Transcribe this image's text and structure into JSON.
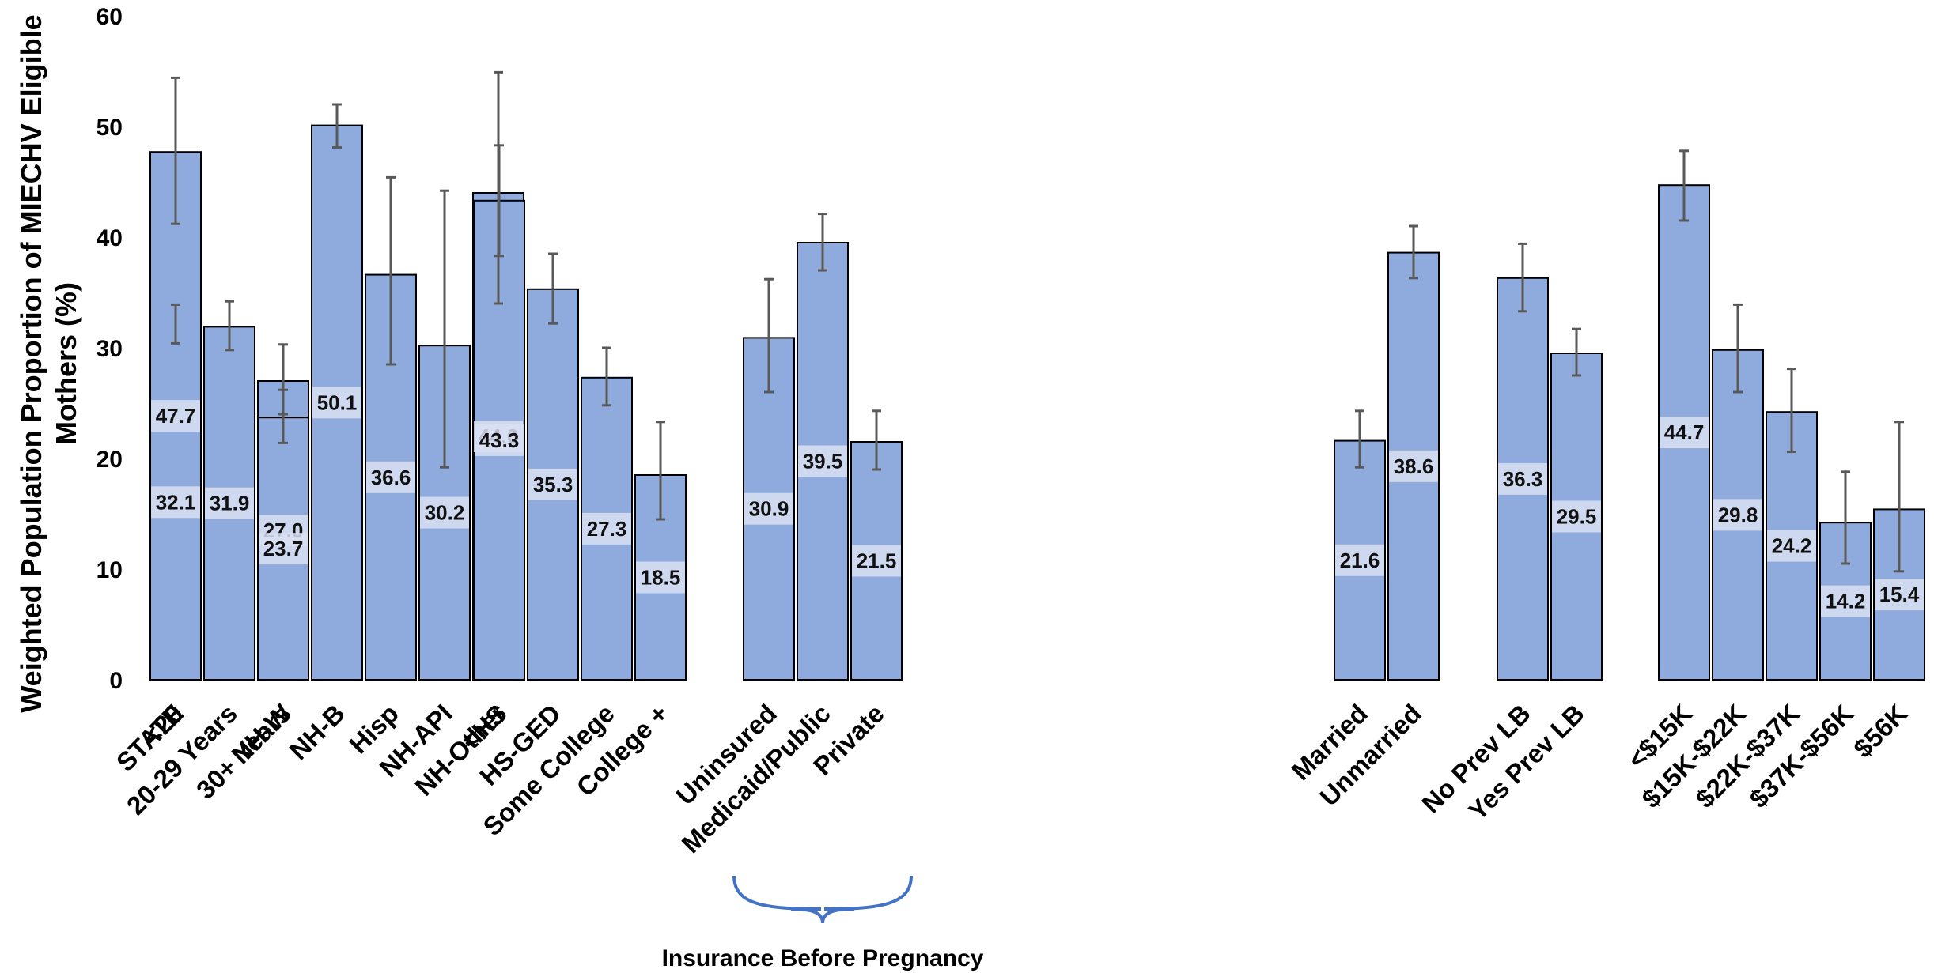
{
  "chart_data": {
    "type": "bar",
    "ylabel_lines": [
      "Weighted Population Proportion of MIECHV Eligible",
      "Mothers (%)"
    ],
    "ylim": [
      0,
      60
    ],
    "yticks": [
      0,
      10,
      20,
      30,
      40,
      50,
      60
    ],
    "grid": false,
    "colors": {
      "state": "#4472C4",
      "group": "#8FAADC",
      "bar_border": "#000000",
      "error_bar": "#595959",
      "brace": "#4472C4",
      "label_box": "#D9E1F2"
    },
    "categories": [
      "STATE",
      "<20",
      "20-29 Years",
      "30+ Years",
      "NH-W",
      "NH-B",
      "Hisp",
      "NH-API",
      "NH-Other",
      "<HS",
      "HS-GED",
      "Some College",
      "College +",
      "Uninsured",
      "Medicaid/Public",
      "Private",
      "Married",
      "Unmarried",
      "No Prev LB",
      "Yes Prev LB",
      "<$15K",
      "$15K-$22K",
      "$22K-$37K",
      "$37K-$56K",
      "$56K"
    ],
    "values": [
      32.1,
      47.7,
      31.9,
      27.0,
      23.7,
      50.1,
      36.6,
      30.2,
      44.0,
      43.3,
      35.3,
      27.3,
      18.5,
      30.9,
      39.5,
      21.5,
      21.6,
      38.6,
      36.3,
      29.5,
      44.7,
      29.8,
      24.2,
      14.2,
      15.4
    ],
    "data_labels": [
      "32.1",
      "47.7",
      "31.9",
      "27.0",
      "23.7",
      "50.1",
      "36.6",
      "30.2",
      "44.0",
      "43.3",
      "35.3",
      "27.3",
      "18.5",
      "30.9",
      "39.5",
      "21.5",
      "21.6",
      "38.6",
      "36.3",
      "29.5",
      "44.7",
      "29.8",
      "24.2",
      "14.2",
      "15.4"
    ],
    "error_low": [
      30.4,
      41.2,
      29.8,
      24.0,
      21.4,
      48.1,
      28.5,
      19.2,
      34.0,
      38.3,
      32.2,
      24.8,
      14.5,
      26.0,
      37.0,
      19.0,
      19.2,
      36.3,
      33.3,
      27.5,
      41.5,
      26.0,
      20.6,
      10.5,
      9.8
    ],
    "error_high": [
      33.9,
      54.4,
      34.2,
      30.3,
      26.2,
      52.0,
      45.4,
      44.2,
      54.9,
      48.3,
      38.5,
      30.0,
      23.3,
      36.2,
      42.1,
      24.3,
      24.3,
      41.0,
      39.4,
      31.7,
      47.8,
      33.9,
      28.1,
      18.8,
      23.3
    ],
    "groups": [
      [
        0
      ],
      [
        1,
        2,
        3
      ],
      [
        4,
        5,
        6,
        7,
        8
      ],
      [
        9,
        10,
        11,
        12
      ],
      [
        13,
        14,
        15
      ],
      [
        16,
        17
      ],
      [
        18,
        19
      ],
      [
        20,
        21,
        22,
        23,
        24
      ]
    ],
    "annotation": {
      "text": "Insurance Before Pregnancy",
      "group_index": 4
    }
  }
}
